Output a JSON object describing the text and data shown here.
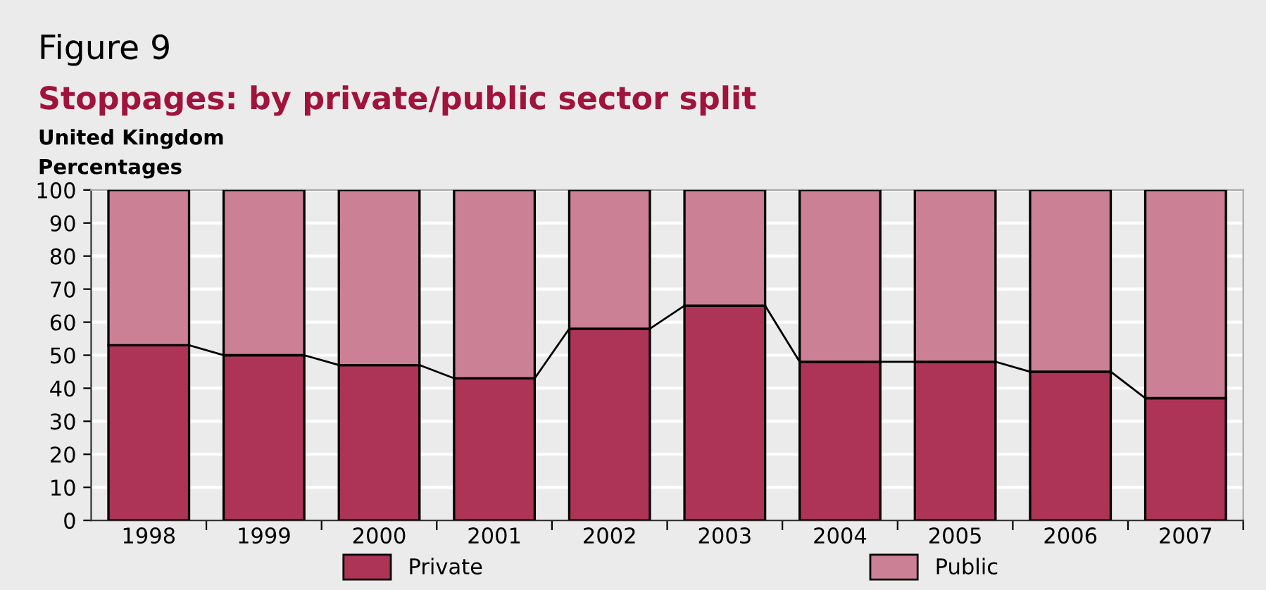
{
  "chart_data": {
    "type": "bar",
    "title": "Figure 9",
    "subtitle": "Stoppages: by private/public sector split",
    "annotations": [
      "United Kingdom",
      "Percentages"
    ],
    "categories": [
      "1998",
      "1999",
      "2000",
      "2001",
      "2002",
      "2003",
      "2004",
      "2005",
      "2006",
      "2007"
    ],
    "stacked": true,
    "series": [
      {
        "name": "Private",
        "color": "#ad3457",
        "values": [
          53,
          50,
          47,
          43,
          58,
          65,
          48,
          48,
          45,
          37
        ]
      },
      {
        "name": "Public",
        "color": "#cc8095",
        "values": [
          47,
          50,
          53,
          57,
          42,
          35,
          52,
          52,
          55,
          63
        ]
      }
    ],
    "ylim": [
      0,
      100
    ],
    "yticks": [
      0,
      10,
      20,
      30,
      40,
      50,
      60,
      70,
      80,
      90,
      100
    ],
    "grid": "y",
    "legend": "bottom"
  }
}
